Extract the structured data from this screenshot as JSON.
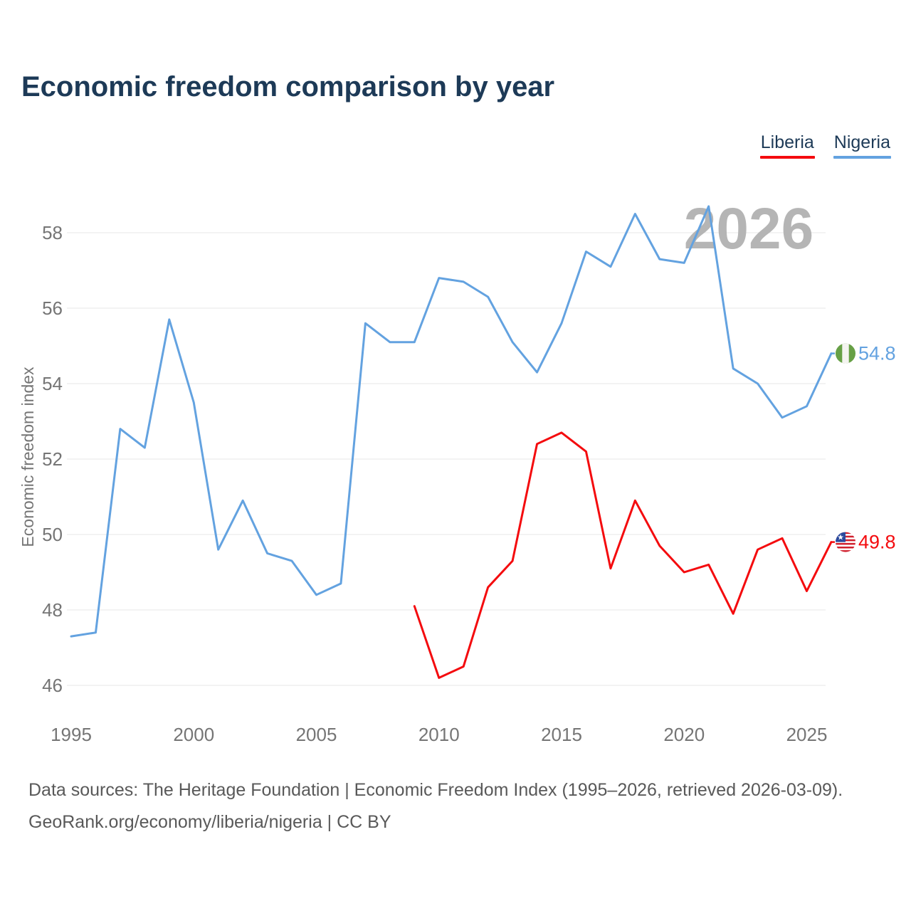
{
  "header": {
    "title": "Economic freedom comparison by year"
  },
  "legend": [
    {
      "label": "Liberia",
      "color": "#f40b0e"
    },
    {
      "label": "Nigeria",
      "color": "#63a2e0"
    }
  ],
  "watermark": "2026",
  "chart_data": {
    "type": "line",
    "title": "Economic freedom comparison by year",
    "xlabel": "",
    "ylabel": "Economic freedom index",
    "ylim": [
      46,
      58.8
    ],
    "yticks": [
      46,
      48,
      50,
      52,
      54,
      56,
      58
    ],
    "xticks": [
      1995,
      2000,
      2005,
      2010,
      2015,
      2020,
      2025
    ],
    "grid": "horizontal",
    "legend_position": "top-right",
    "series": [
      {
        "name": "Nigeria",
        "color": "#63a2e0",
        "end_label": "54.8",
        "flag": "nigeria-flag-icon",
        "x": [
          1995,
          1996,
          1997,
          1998,
          1999,
          2000,
          2001,
          2002,
          2003,
          2004,
          2005,
          2006,
          2007,
          2008,
          2009,
          2010,
          2011,
          2012,
          2013,
          2014,
          2015,
          2016,
          2017,
          2018,
          2019,
          2020,
          2021,
          2022,
          2023,
          2024,
          2025,
          2026
        ],
        "values": [
          47.3,
          47.4,
          52.8,
          52.3,
          55.7,
          53.5,
          49.6,
          50.9,
          49.5,
          49.3,
          48.4,
          48.7,
          55.6,
          55.1,
          55.1,
          56.8,
          56.7,
          56.3,
          55.1,
          54.3,
          55.6,
          57.5,
          57.1,
          58.5,
          57.3,
          57.2,
          58.7,
          54.4,
          54.0,
          53.1,
          53.4,
          54.8
        ]
      },
      {
        "name": "Liberia",
        "color": "#f40b0e",
        "end_label": "49.8",
        "flag": "liberia-flag-icon",
        "x": [
          2009,
          2010,
          2011,
          2012,
          2013,
          2014,
          2015,
          2016,
          2017,
          2018,
          2019,
          2020,
          2021,
          2022,
          2023,
          2024,
          2025,
          2026
        ],
        "values": [
          48.1,
          46.2,
          46.5,
          48.6,
          49.3,
          52.4,
          52.7,
          52.2,
          49.1,
          50.9,
          49.7,
          49.0,
          49.2,
          47.9,
          49.6,
          49.9,
          48.5,
          49.8
        ]
      }
    ]
  },
  "footer": {
    "line1": "Data sources: The Heritage Foundation | Economic Freedom Index (1995–2026, retrieved 2026-03-09).",
    "line2": "GeoRank.org/economy/liberia/nigeria | CC BY"
  }
}
